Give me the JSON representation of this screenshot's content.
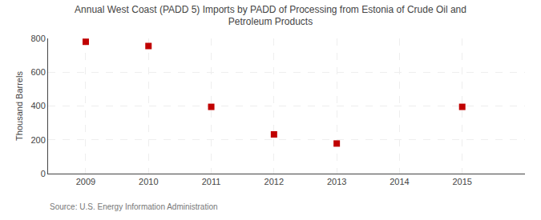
{
  "chart_data": {
    "type": "scatter",
    "title": "Annual West Coast (PADD 5) Imports by PADD of Processing from Estonia of Crude Oil and\nPetroleum Products",
    "ylabel": "Thousand Barrels",
    "annotations": [
      "Source: U.S. Energy Information Administration"
    ],
    "x": [
      2009,
      2010,
      2011,
      2012,
      2013,
      2015
    ],
    "values": [
      780,
      755,
      395,
      232,
      178,
      395
    ],
    "xlim": [
      2008.4,
      2016.0
    ],
    "ylim": [
      0,
      800
    ],
    "xticks": [
      2009,
      2010,
      2011,
      2012,
      2013,
      2014,
      2015
    ],
    "yticks": [
      0,
      200,
      400,
      600,
      800
    ],
    "color": "#c00000",
    "marker": "square",
    "grid": true
  }
}
